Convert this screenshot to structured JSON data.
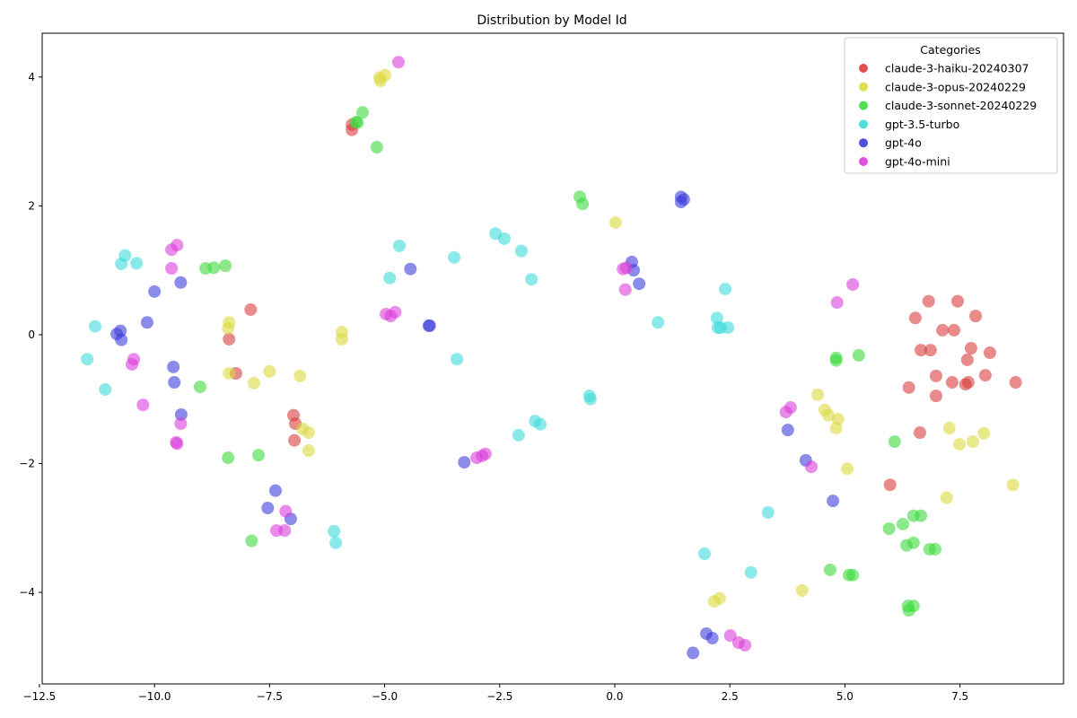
{
  "chart_data": {
    "type": "scatter",
    "title": "Distribution by Model Id",
    "xlabel": "",
    "ylabel": "",
    "xlim": [
      -12.44,
      9.75
    ],
    "ylim": [
      -5.42,
      4.68
    ],
    "xticks": [
      -12.5,
      -10.0,
      -7.5,
      -5.0,
      -2.5,
      0.0,
      2.5,
      5.0,
      7.5
    ],
    "xtick_labels": [
      "−12.5",
      "−10.0",
      "−7.5",
      "−5.0",
      "−2.5",
      "0.0",
      "2.5",
      "5.0",
      "7.5"
    ],
    "yticks": [
      -4,
      -2,
      0,
      2,
      4
    ],
    "ytick_labels": [
      "−4",
      "−2",
      "0",
      "2",
      "4"
    ],
    "grid": false,
    "legend": {
      "title": "Categories",
      "placement": "top-right"
    },
    "series": [
      {
        "name": "claude-3-haiku-20240307",
        "color": "#db3d3d",
        "points": [
          [
            -5.71,
            3.26
          ],
          [
            -5.71,
            3.18
          ],
          [
            -7.91,
            0.39
          ],
          [
            -8.38,
            -0.07
          ],
          [
            -8.23,
            -0.6
          ],
          [
            -6.98,
            -1.25
          ],
          [
            -6.94,
            -1.38
          ],
          [
            -6.96,
            -1.64
          ],
          [
            6.82,
            0.52
          ],
          [
            7.45,
            0.52
          ],
          [
            7.84,
            0.29
          ],
          [
            6.53,
            0.26
          ],
          [
            7.12,
            0.07
          ],
          [
            7.37,
            0.07
          ],
          [
            6.65,
            -0.24
          ],
          [
            6.86,
            -0.24
          ],
          [
            7.74,
            -0.21
          ],
          [
            8.15,
            -0.28
          ],
          [
            7.66,
            -0.39
          ],
          [
            6.98,
            -0.64
          ],
          [
            8.05,
            -0.63
          ],
          [
            7.33,
            -0.74
          ],
          [
            7.62,
            -0.77
          ],
          [
            7.68,
            -0.74
          ],
          [
            8.71,
            -0.74
          ],
          [
            6.39,
            -0.82
          ],
          [
            6.98,
            -0.95
          ],
          [
            6.63,
            -1.52
          ],
          [
            5.98,
            -2.33
          ]
        ]
      },
      {
        "name": "claude-3-opus-20240229",
        "color": "#dbdb3d",
        "points": [
          [
            -5.09,
            3.94
          ],
          [
            -4.99,
            4.03
          ],
          [
            -5.11,
            3.99
          ],
          [
            -8.38,
            0.19
          ],
          [
            -8.4,
            0.1
          ],
          [
            -5.93,
            0.04
          ],
          [
            -5.93,
            -0.07
          ],
          [
            -8.38,
            -0.6
          ],
          [
            -7.5,
            -0.57
          ],
          [
            -6.84,
            -0.64
          ],
          [
            -7.84,
            -0.75
          ],
          [
            -6.78,
            -1.46
          ],
          [
            -6.65,
            -1.52
          ],
          [
            -6.65,
            -1.8
          ],
          [
            0.02,
            1.74
          ],
          [
            4.41,
            -0.93
          ],
          [
            4.56,
            -1.17
          ],
          [
            4.64,
            -1.25
          ],
          [
            4.85,
            -1.31
          ],
          [
            4.81,
            -1.45
          ],
          [
            5.05,
            -2.08
          ],
          [
            7.27,
            -1.45
          ],
          [
            7.49,
            -1.7
          ],
          [
            7.78,
            -1.66
          ],
          [
            8.02,
            -1.53
          ],
          [
            7.21,
            -2.53
          ],
          [
            8.65,
            -2.33
          ],
          [
            2.16,
            -4.14
          ],
          [
            2.28,
            -4.09
          ],
          [
            4.07,
            -3.97
          ]
        ]
      },
      {
        "name": "claude-3-sonnet-20240229",
        "color": "#3ddb3d",
        "points": [
          [
            -5.48,
            3.45
          ],
          [
            -5.59,
            3.29
          ],
          [
            -5.62,
            3.3
          ],
          [
            -5.17,
            2.91
          ],
          [
            -0.76,
            2.14
          ],
          [
            -0.7,
            2.03
          ],
          [
            -8.89,
            1.03
          ],
          [
            -8.71,
            1.04
          ],
          [
            -8.46,
            1.07
          ],
          [
            -9.01,
            -0.81
          ],
          [
            -8.4,
            -1.91
          ],
          [
            -7.74,
            -1.87
          ],
          [
            -7.89,
            -3.2
          ],
          [
            4.81,
            -0.36
          ],
          [
            4.81,
            -0.4
          ],
          [
            5.3,
            -0.32
          ],
          [
            6.08,
            -1.66
          ],
          [
            5.96,
            -3.01
          ],
          [
            6.26,
            -2.94
          ],
          [
            6.49,
            -2.81
          ],
          [
            6.65,
            -2.81
          ],
          [
            6.34,
            -3.27
          ],
          [
            6.49,
            -3.23
          ],
          [
            6.84,
            -3.33
          ],
          [
            6.96,
            -3.33
          ],
          [
            4.68,
            -3.65
          ],
          [
            5.09,
            -3.73
          ],
          [
            5.17,
            -3.73
          ],
          [
            6.37,
            -4.21
          ],
          [
            6.49,
            -4.21
          ],
          [
            6.39,
            -4.28
          ]
        ]
      },
      {
        "name": "gpt-3.5-turbo",
        "color": "#3ddbdb",
        "points": [
          [
            -10.64,
            1.23
          ],
          [
            -10.72,
            1.1
          ],
          [
            -10.39,
            1.11
          ],
          [
            -11.29,
            0.13
          ],
          [
            -11.46,
            -0.38
          ],
          [
            -11.07,
            -0.85
          ],
          [
            -4.68,
            1.38
          ],
          [
            -4.89,
            0.88
          ],
          [
            -3.49,
            1.2
          ],
          [
            -2.59,
            1.57
          ],
          [
            -2.4,
            1.49
          ],
          [
            -2.03,
            1.3
          ],
          [
            -1.81,
            0.86
          ],
          [
            -3.43,
            -0.38
          ],
          [
            -0.55,
            -0.95
          ],
          [
            -0.53,
            -1.0
          ],
          [
            -1.73,
            -1.34
          ],
          [
            -1.62,
            -1.39
          ],
          [
            -2.09,
            -1.56
          ],
          [
            -6.1,
            -3.05
          ],
          [
            -6.06,
            -3.23
          ],
          [
            0.94,
            0.19
          ],
          [
            2.4,
            0.71
          ],
          [
            2.22,
            0.26
          ],
          [
            2.24,
            0.11
          ],
          [
            2.46,
            0.11
          ],
          [
            2.3,
            0.11
          ],
          [
            3.33,
            -2.76
          ],
          [
            1.95,
            -3.4
          ],
          [
            2.96,
            -3.69
          ]
        ]
      },
      {
        "name": "gpt-4o",
        "color": "#3d3ddb",
        "points": [
          [
            -10.0,
            0.67
          ],
          [
            -10.16,
            0.19
          ],
          [
            -10.82,
            0.01
          ],
          [
            -10.74,
            0.06
          ],
          [
            -10.72,
            -0.08
          ],
          [
            -9.43,
            0.81
          ],
          [
            -9.59,
            -0.5
          ],
          [
            -9.57,
            -0.74
          ],
          [
            -9.42,
            -1.24
          ],
          [
            -4.44,
            1.02
          ],
          [
            -4.04,
            0.14
          ],
          [
            -4.02,
            0.14
          ],
          [
            -3.27,
            -1.98
          ],
          [
            -7.37,
            -2.42
          ],
          [
            -7.54,
            -2.69
          ],
          [
            -7.04,
            -2.86
          ],
          [
            1.44,
            2.14
          ],
          [
            1.44,
            2.06
          ],
          [
            1.5,
            2.1
          ],
          [
            0.37,
            1.13
          ],
          [
            0.41,
            1.0
          ],
          [
            0.53,
            0.79
          ],
          [
            3.76,
            -1.48
          ],
          [
            4.15,
            -1.95
          ],
          [
            4.74,
            -2.58
          ],
          [
            1.7,
            -4.94
          ],
          [
            1.99,
            -4.64
          ],
          [
            2.12,
            -4.71
          ]
        ]
      },
      {
        "name": "gpt-4o-mini",
        "color": "#db3ddb",
        "points": [
          [
            -4.7,
            4.23
          ],
          [
            -9.63,
            1.32
          ],
          [
            -9.51,
            1.39
          ],
          [
            -9.63,
            1.03
          ],
          [
            -10.45,
            -0.38
          ],
          [
            -10.49,
            -0.46
          ],
          [
            -10.25,
            -1.09
          ],
          [
            -9.43,
            -1.38
          ],
          [
            -9.53,
            -1.67
          ],
          [
            -9.51,
            -1.69
          ],
          [
            -4.97,
            0.32
          ],
          [
            -4.87,
            0.29
          ],
          [
            -4.77,
            0.35
          ],
          [
            -7.15,
            -2.74
          ],
          [
            -7.35,
            -3.04
          ],
          [
            -7.17,
            -3.04
          ],
          [
            -3.0,
            -1.91
          ],
          [
            -2.88,
            -1.88
          ],
          [
            -2.81,
            -1.85
          ],
          [
            0.18,
            1.02
          ],
          [
            0.25,
            1.04
          ],
          [
            0.23,
            0.7
          ],
          [
            4.83,
            0.5
          ],
          [
            5.17,
            0.78
          ],
          [
            3.82,
            -1.13
          ],
          [
            3.72,
            -1.2
          ],
          [
            4.27,
            -2.05
          ],
          [
            2.51,
            -4.67
          ],
          [
            2.69,
            -4.78
          ],
          [
            2.83,
            -4.82
          ]
        ]
      }
    ]
  }
}
